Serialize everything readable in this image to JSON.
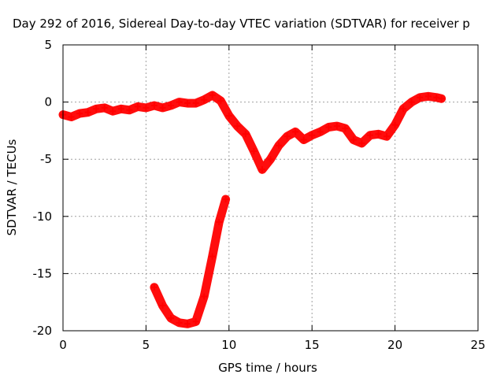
{
  "chart_data": {
    "type": "scatter",
    "title": "Day 292 of 2016, Sidereal Day-to-day VTEC variation (SDTVAR) for receiver p",
    "xlabel": "GPS time / hours",
    "ylabel": "SDTVAR / TECUs",
    "xlim": [
      0,
      25
    ],
    "ylim": [
      -20,
      5
    ],
    "xticks": [
      0,
      5,
      10,
      15,
      20,
      25
    ],
    "yticks": [
      -20,
      -15,
      -10,
      -5,
      0,
      5
    ],
    "xtick_labels": [
      "0",
      "5",
      "10",
      "15",
      "20",
      "25"
    ],
    "ytick_labels": [
      "-20",
      "-15",
      "-10",
      "-5",
      "0",
      "5"
    ],
    "grid": true,
    "marker": "plus",
    "series_color": "#ff0000",
    "series": [
      {
        "name": "main",
        "points": [
          [
            0.0,
            -1.1
          ],
          [
            0.5,
            -1.3
          ],
          [
            1.0,
            -1.0
          ],
          [
            1.5,
            -0.9
          ],
          [
            2.0,
            -0.6
          ],
          [
            2.5,
            -0.5
          ],
          [
            3.0,
            -0.8
          ],
          [
            3.5,
            -0.6
          ],
          [
            4.0,
            -0.7
          ],
          [
            4.5,
            -0.4
          ],
          [
            5.0,
            -0.5
          ],
          [
            5.5,
            -0.3
          ],
          [
            6.0,
            -0.5
          ],
          [
            6.5,
            -0.3
          ],
          [
            7.0,
            0.0
          ],
          [
            7.5,
            -0.1
          ],
          [
            8.0,
            -0.1
          ],
          [
            8.5,
            0.2
          ],
          [
            9.0,
            0.6
          ],
          [
            9.5,
            0.1
          ],
          [
            10.0,
            -1.2
          ],
          [
            10.5,
            -2.1
          ],
          [
            11.0,
            -2.8
          ],
          [
            11.5,
            -4.3
          ],
          [
            12.0,
            -5.9
          ],
          [
            12.5,
            -5.0
          ],
          [
            13.0,
            -3.8
          ],
          [
            13.5,
            -3.0
          ],
          [
            14.0,
            -2.6
          ],
          [
            14.5,
            -3.3
          ],
          [
            15.0,
            -2.9
          ],
          [
            15.5,
            -2.6
          ],
          [
            16.0,
            -2.2
          ],
          [
            16.5,
            -2.1
          ],
          [
            17.0,
            -2.3
          ],
          [
            17.5,
            -3.3
          ],
          [
            18.0,
            -3.6
          ],
          [
            18.5,
            -2.9
          ],
          [
            19.0,
            -2.8
          ],
          [
            19.5,
            -3.0
          ],
          [
            20.0,
            -2.0
          ],
          [
            20.5,
            -0.6
          ],
          [
            21.0,
            0.0
          ],
          [
            21.5,
            0.4
          ],
          [
            22.0,
            0.5
          ],
          [
            22.5,
            0.4
          ],
          [
            22.8,
            0.3
          ]
        ]
      },
      {
        "name": "dip",
        "points": [
          [
            5.5,
            -16.2
          ],
          [
            6.0,
            -17.8
          ],
          [
            6.5,
            -18.9
          ],
          [
            7.0,
            -19.3
          ],
          [
            7.5,
            -19.4
          ],
          [
            8.0,
            -19.2
          ],
          [
            8.5,
            -17.0
          ],
          [
            9.0,
            -13.5
          ],
          [
            9.4,
            -10.5
          ],
          [
            9.8,
            -8.5
          ]
        ]
      }
    ]
  }
}
